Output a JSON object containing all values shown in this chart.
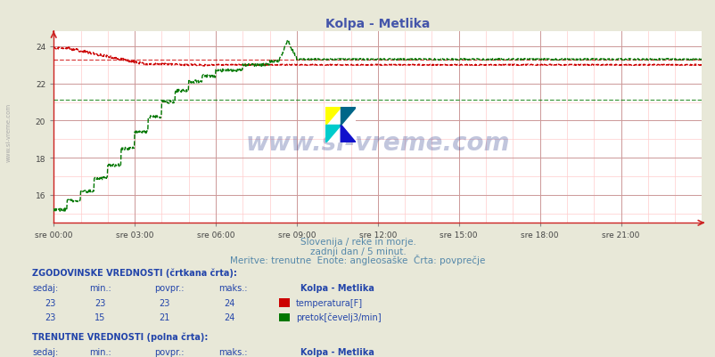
{
  "title": "Kolpa - Metlika",
  "title_color": "#4455aa",
  "bg_color": "#e8e8d8",
  "plot_bg_color": "#ffffff",
  "grid_color_major": "#cc9999",
  "grid_color_minor": "#ffcccc",
  "x_ticks": [
    "sre 00:00",
    "sre 03:00",
    "sre 06:00",
    "sre 09:00",
    "sre 12:00",
    "sre 15:00",
    "sre 18:00",
    "sre 21:00"
  ],
  "x_tick_positions": [
    0,
    180,
    360,
    540,
    720,
    900,
    1080,
    1260
  ],
  "x_max": 1439,
  "ylim": [
    14.5,
    24.8
  ],
  "yticks": [
    16,
    18,
    20,
    22,
    24
  ],
  "temp_color": "#cc0000",
  "flow_color": "#007700",
  "avg_temp": 23.3,
  "avg_flow": 21.1,
  "watermark_text": "www.si-vreme.com",
  "watermark_color": "#223388",
  "watermark_alpha": 0.28,
  "subtitle1": "Slovenija / reke in morje.",
  "subtitle2": "zadnji dan / 5 minut.",
  "subtitle3": "Meritve: trenutne  Enote: angleosaške  Črta: povprečje",
  "subtitle_color": "#5588aa",
  "left_label": "www.si-vreme.com",
  "left_label_color": "#aaaaaa",
  "tc": "#2244aa",
  "n_points": 1440
}
